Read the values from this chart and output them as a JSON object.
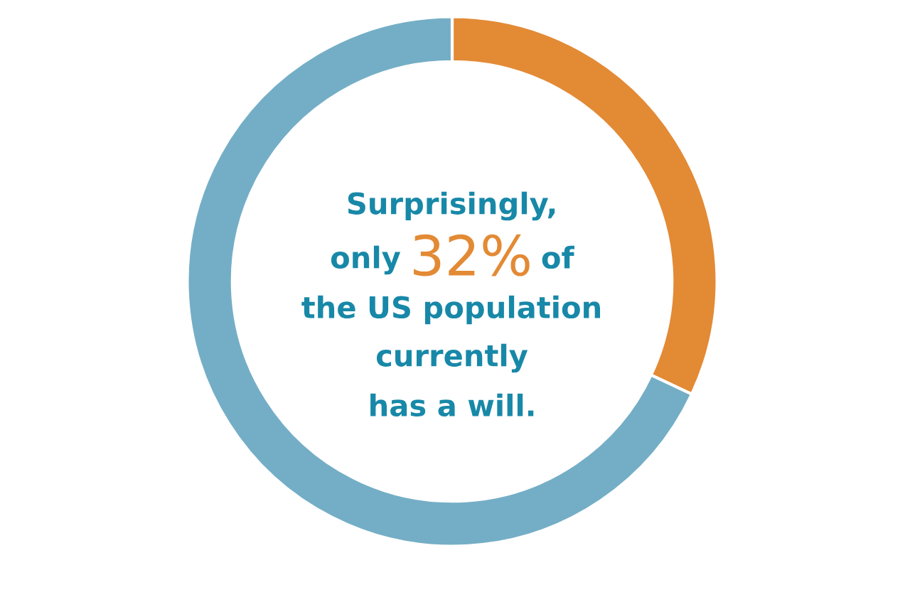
{
  "chart_data": {
    "type": "donut",
    "categories": [
      null,
      null
    ],
    "values": [
      32,
      68
    ],
    "colors": [
      "#e38a35",
      "#74aec6"
    ],
    "annotations": [
      "Surprisingly,",
      "only",
      "32%",
      "of",
      "the US population",
      "currently",
      "has a will."
    ]
  }
}
